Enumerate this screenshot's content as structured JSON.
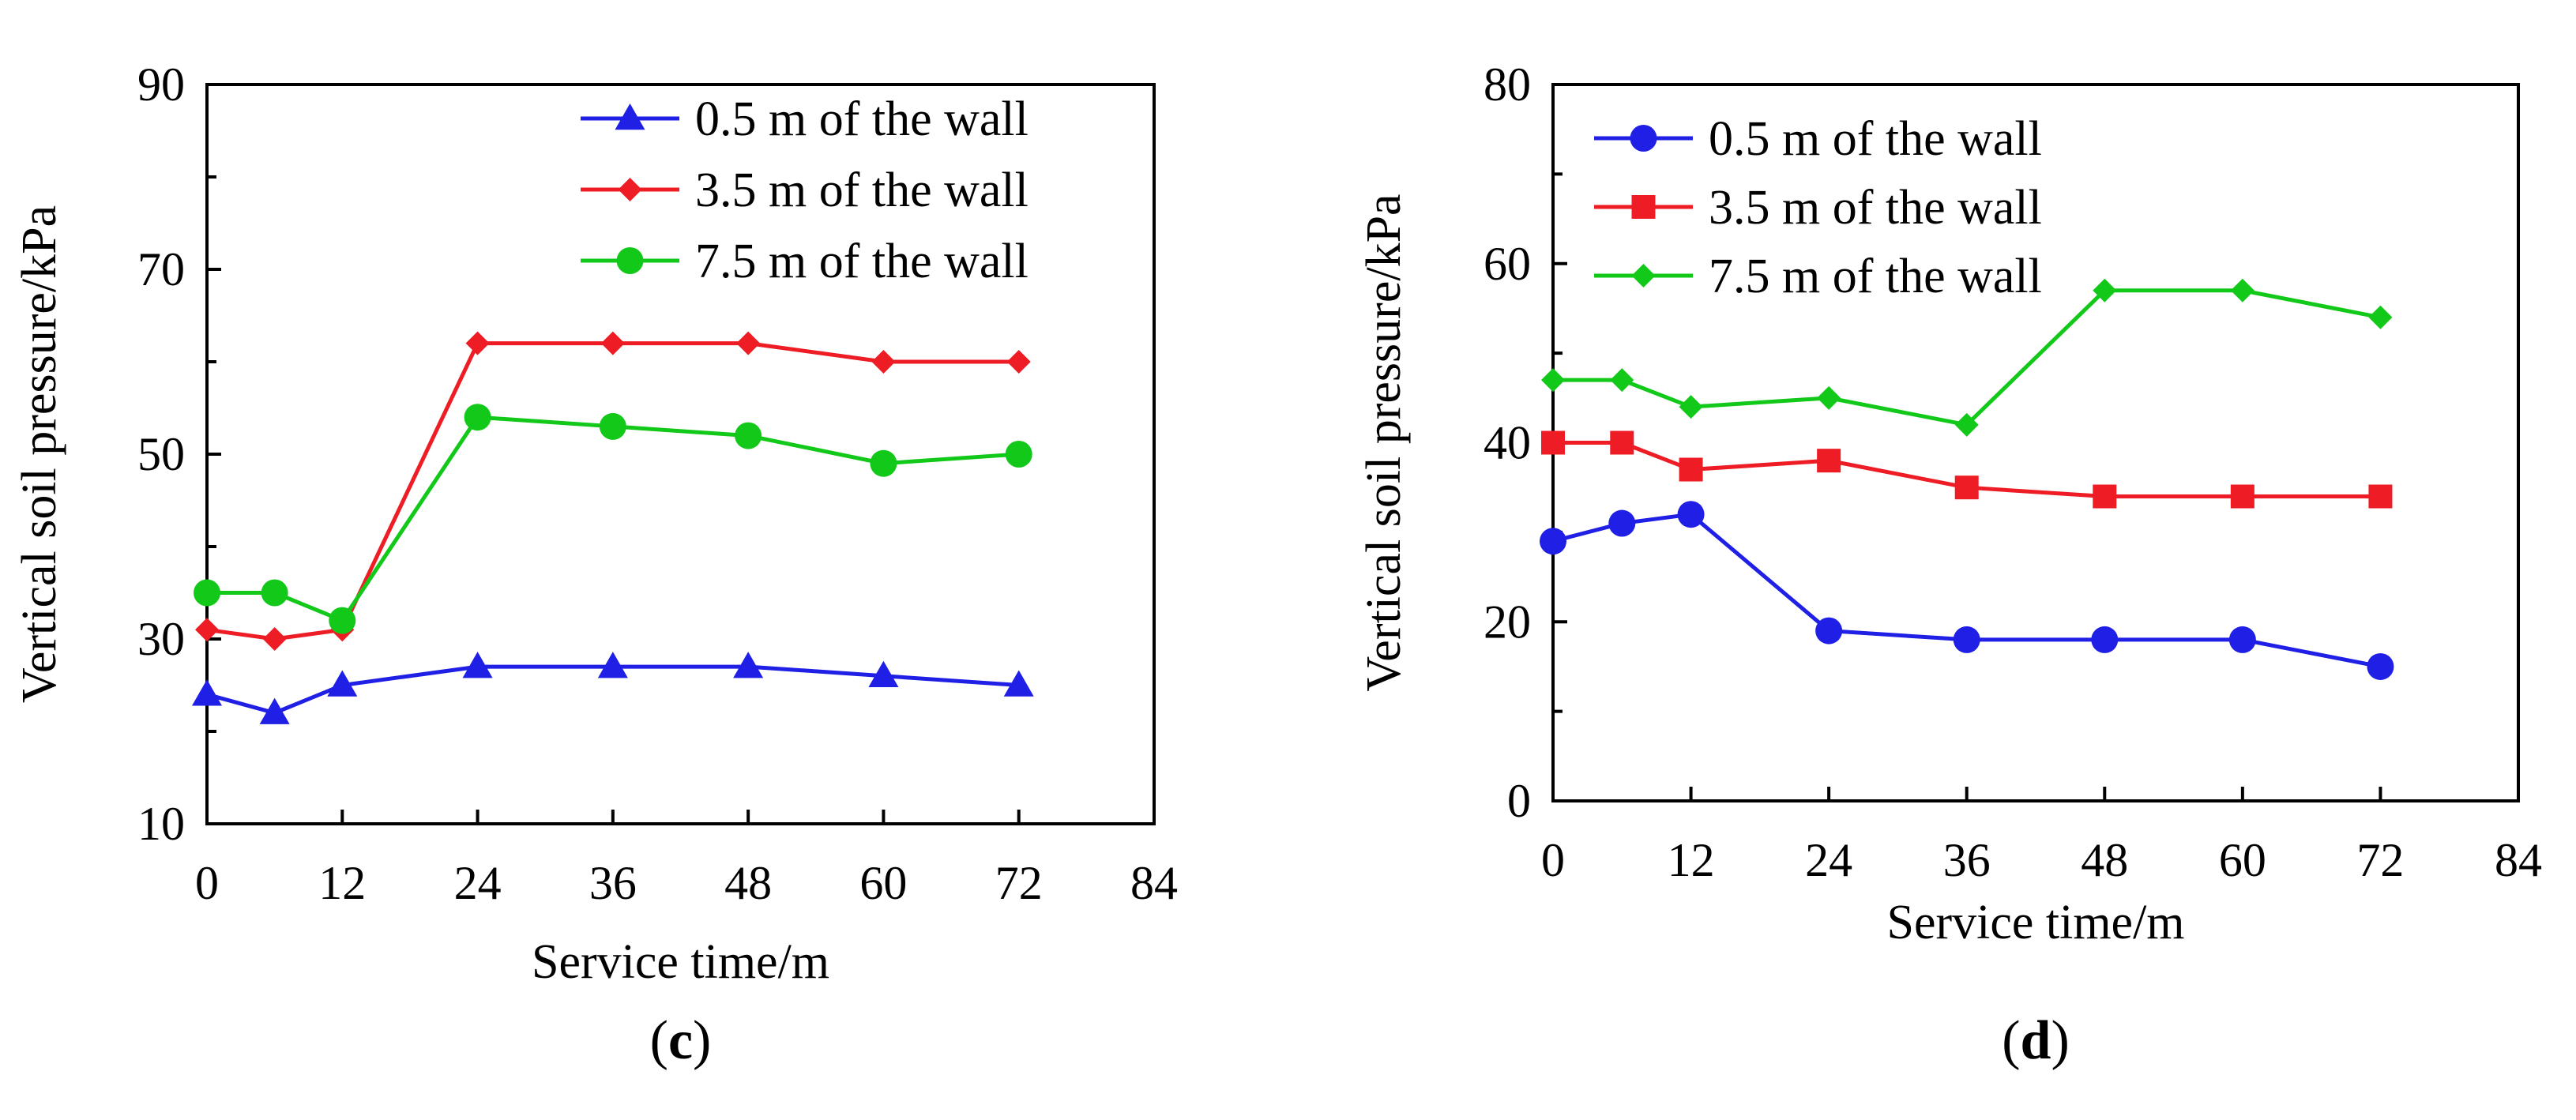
{
  "chart_data": [
    {
      "type": "line",
      "panel_label": {
        "open": "(",
        "letter": "c",
        "close": ")"
      },
      "xlabel": "Service time/m",
      "ylabel": "Vertical soil pressure/kPa",
      "xlim": [
        0,
        84
      ],
      "ylim": [
        10,
        90
      ],
      "xticks": [
        0,
        12,
        24,
        36,
        48,
        60,
        72,
        84
      ],
      "yticks": [
        10,
        30,
        50,
        70,
        90
      ],
      "legend_position": "top-right",
      "x": [
        0,
        6,
        12,
        24,
        36,
        48,
        60,
        72
      ],
      "series": [
        {
          "name": "0.5 m of the wall",
          "color": "#1f1fe6",
          "marker": "triangle",
          "values": [
            24,
            22,
            25,
            27,
            27,
            27,
            26,
            25
          ]
        },
        {
          "name": "3.5 m of the wall",
          "color": "#ee1c24",
          "marker": "diamond",
          "values": [
            31,
            30,
            31,
            62,
            62,
            62,
            60,
            60
          ]
        },
        {
          "name": "7.5 m of the wall",
          "color": "#12c91a",
          "marker": "circle",
          "values": [
            35,
            35,
            32,
            54,
            53,
            52,
            49,
            50
          ]
        }
      ]
    },
    {
      "type": "line",
      "panel_label": {
        "open": "(",
        "letter": "d",
        "close": ")"
      },
      "xlabel": "Service time/m",
      "ylabel": "Vertical soil pressure/kPa",
      "xlim": [
        0,
        84
      ],
      "ylim": [
        0,
        80
      ],
      "xticks": [
        0,
        12,
        24,
        36,
        48,
        60,
        72,
        84
      ],
      "yticks": [
        0,
        20,
        40,
        60,
        80
      ],
      "legend_position": "top-left",
      "x": [
        0,
        6,
        12,
        24,
        36,
        48,
        60,
        72
      ],
      "series": [
        {
          "name": "0.5 m of the wall",
          "color": "#1f1fe6",
          "marker": "circle",
          "values": [
            29,
            31,
            32,
            19,
            18,
            18,
            18,
            15
          ]
        },
        {
          "name": "3.5 m of the wall",
          "color": "#ee1c24",
          "marker": "square",
          "values": [
            40,
            40,
            37,
            38,
            35,
            34,
            34,
            34
          ]
        },
        {
          "name": "7.5 m of the wall",
          "color": "#12c91a",
          "marker": "diamond",
          "values": [
            47,
            47,
            44,
            45,
            42,
            57,
            57,
            54
          ]
        }
      ]
    }
  ]
}
